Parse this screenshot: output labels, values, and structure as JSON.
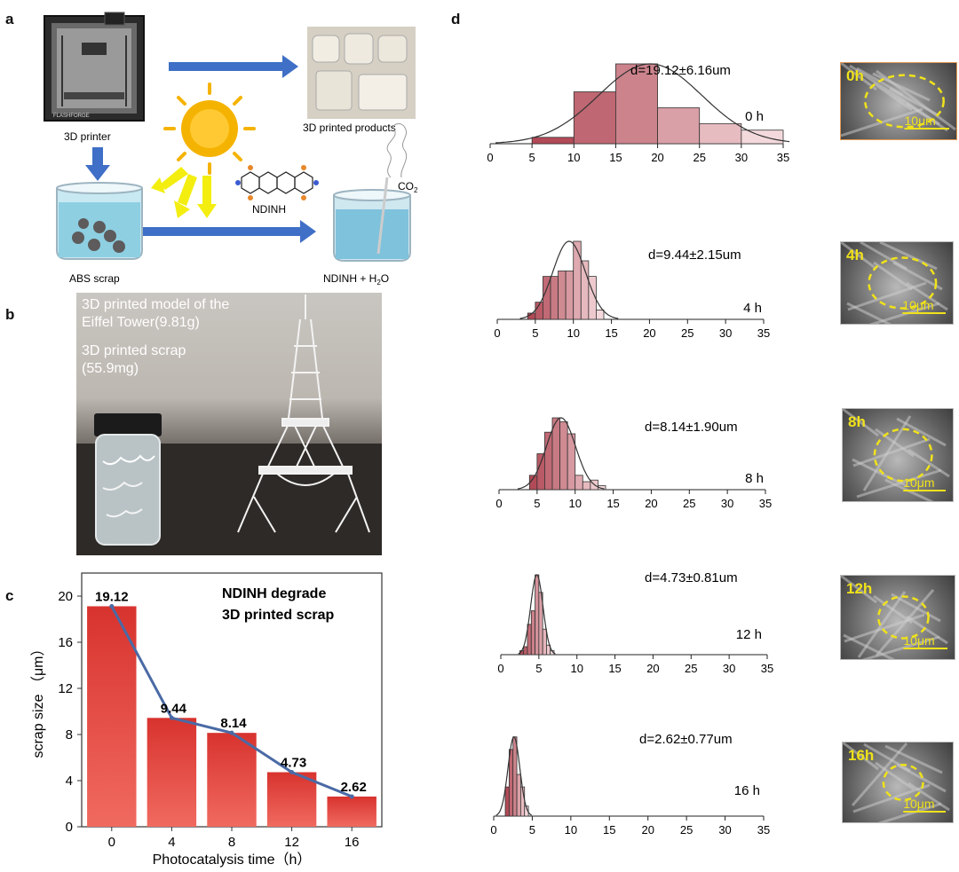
{
  "panels": {
    "a": "a",
    "b": "b",
    "c": "c",
    "d": "d"
  },
  "panel_a": {
    "printer_label": "3D printer",
    "products_label": "3D printed products",
    "catalyst_label": "NDINH",
    "scrap_label": "ABS scrap",
    "co2_label": "CO",
    "co2_sub": "2",
    "mixture_label": "NDINH + H",
    "mixture_sub": "2",
    "mixture_tail": "O",
    "printer_brand": "FLASHFORGE",
    "sun_color": "#f5b301",
    "arrow_color": "#3f6fc6",
    "water_color": "#8ecfe2"
  },
  "panel_b": {
    "caption1": "3D printed model of the",
    "caption2": "Eiffel Tower(9.81g)",
    "caption3": "3D printed scrap",
    "caption4": "(55.9mg)"
  },
  "chart_data": [
    {
      "type": "bar",
      "panel": "c",
      "title": "NDINH degrade",
      "subtitle": "3D printed  scrap",
      "categories": [
        "0",
        "4",
        "8",
        "12",
        "16"
      ],
      "values": [
        19.12,
        9.44,
        8.14,
        4.73,
        2.62
      ],
      "data_labels": [
        "19.12",
        "9.44",
        "8.14",
        "4.73",
        "2.62"
      ],
      "line_overlay": true,
      "xlabel": "Photocatalysis time（h）",
      "ylabel": "scrap size （μm）",
      "ylim": [
        0,
        22
      ],
      "yticks": [
        0,
        4,
        8,
        12,
        16,
        20
      ],
      "bar_color": "#d8332e",
      "line_color": "#4a6aa5"
    },
    {
      "type": "bar",
      "panel": "d",
      "note": "particle size histograms with normal fit",
      "xlim": [
        0,
        35
      ],
      "xticks": [
        0,
        5,
        10,
        15,
        20,
        25,
        30,
        35
      ],
      "histograms": [
        {
          "time_label": "0 h",
          "stat_label": "d=19.12±6.16um",
          "mean": 19.12,
          "sd": 6.16,
          "bins": [
            [
              5,
              10,
              0.08
            ],
            [
              10,
              15,
              0.65
            ],
            [
              15,
              20,
              1.0
            ],
            [
              20,
              25,
              0.45
            ],
            [
              25,
              30,
              0.25
            ],
            [
              30,
              35,
              0.17
            ]
          ],
          "sem_label": "0h",
          "scale_label": "10μm"
        },
        {
          "time_label": "4 h",
          "stat_label": "d=9.44±2.15um",
          "mean": 9.44,
          "sd": 2.15,
          "bins": [
            [
              4,
              5,
              0.08
            ],
            [
              5,
              6,
              0.22
            ],
            [
              6,
              7,
              0.55
            ],
            [
              7,
              8,
              0.55
            ],
            [
              8,
              9,
              0.62
            ],
            [
              9,
              10,
              0.62
            ],
            [
              10,
              11,
              1.0
            ],
            [
              11,
              12,
              0.75
            ],
            [
              12,
              13,
              0.55
            ],
            [
              13,
              14,
              0.12
            ]
          ],
          "sem_label": "4h",
          "scale_label": "10μm"
        },
        {
          "time_label": "8 h",
          "stat_label": "d=8.14±1.90um",
          "mean": 8.14,
          "sd": 1.9,
          "bins": [
            [
              4,
              5,
              0.18
            ],
            [
              5,
              6,
              0.45
            ],
            [
              6,
              7,
              0.72
            ],
            [
              7,
              8,
              0.9
            ],
            [
              8,
              9,
              0.85
            ],
            [
              9,
              10,
              0.7
            ],
            [
              10,
              11,
              0.18
            ],
            [
              11,
              12,
              0.1
            ],
            [
              12,
              13,
              0.12
            ],
            [
              13,
              14,
              0.05
            ]
          ],
          "sem_label": "8h",
          "scale_label": "10μm"
        },
        {
          "time_label": "12 h",
          "stat_label": "d=4.73±0.81um",
          "mean": 4.73,
          "sd": 0.81,
          "bins": [
            [
              2.5,
              3,
              0.05
            ],
            [
              3,
              3.5,
              0.1
            ],
            [
              3.5,
              4,
              0.38
            ],
            [
              4,
              4.5,
              0.55
            ],
            [
              4.5,
              5,
              1.0
            ],
            [
              5,
              5.5,
              0.78
            ],
            [
              5.5,
              6,
              0.32
            ],
            [
              6,
              6.5,
              0.12
            ],
            [
              6.5,
              7,
              0.05
            ]
          ],
          "sem_label": "12h",
          "scale_label": "10μm"
        },
        {
          "time_label": "16 h",
          "stat_label": "d=2.62±0.77um",
          "mean": 2.62,
          "sd": 0.77,
          "bins": [
            [
              1.5,
              2,
              0.35
            ],
            [
              2,
              2.5,
              0.8
            ],
            [
              2.5,
              3,
              0.95
            ],
            [
              3,
              3.5,
              0.5
            ],
            [
              3.5,
              4,
              0.35
            ],
            [
              4,
              4.5,
              0.12
            ]
          ],
          "sem_label": "16h",
          "scale_label": "10μm"
        }
      ],
      "bar_color_dark": "#b24a57",
      "bar_color_light": "#f4d9dc",
      "sem_label_color": "#f0e21a"
    }
  ]
}
